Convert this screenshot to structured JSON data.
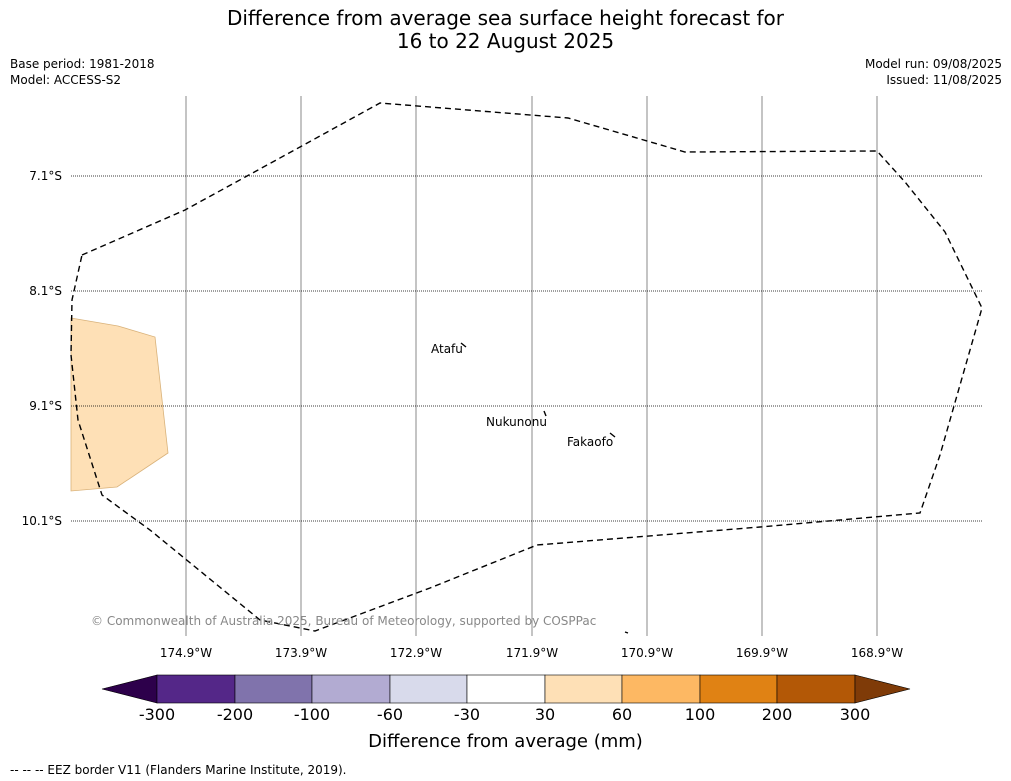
{
  "title": {
    "line1": "Difference from average sea surface height forecast for",
    "line2": "16 to 22 August 2025"
  },
  "meta": {
    "base_period": "Base period: 1981-2018",
    "model": "Model: ACCESS-S2",
    "model_run": "Model run: 09/08/2025",
    "issued": "Issued: 11/08/2025"
  },
  "map": {
    "lat_labels": [
      "7.1°S",
      "8.1°S",
      "9.1°S",
      "10.1°S"
    ],
    "lon_labels": [
      "174.9°W",
      "173.9°W",
      "172.9°W",
      "171.9°W",
      "170.9°W",
      "169.9°W",
      "168.9°W"
    ],
    "places": [
      "Atafu",
      "Nukunonu",
      "Fakaofo"
    ],
    "anomaly_patch_color": "#fee0b6",
    "copyright": "© Commonwealth of Australia 2025, Bureau of Meteorology, supported by COSPPac"
  },
  "colorbar": {
    "title": "Difference from average (mm)",
    "tick_labels": [
      "-300",
      "-200",
      "-100",
      "-60",
      "-30",
      "30",
      "60",
      "100",
      "200",
      "300"
    ],
    "colors": [
      "#2d004b",
      "#542788",
      "#8073ac",
      "#b2abd2",
      "#d8daeb",
      "#ffffff",
      "#fee0b6",
      "#fdb863",
      "#e08214",
      "#b35806",
      "#7f3b08"
    ]
  },
  "footnote": "-- -- -- EEZ border V11 (Flanders Marine Institute, 2019)."
}
